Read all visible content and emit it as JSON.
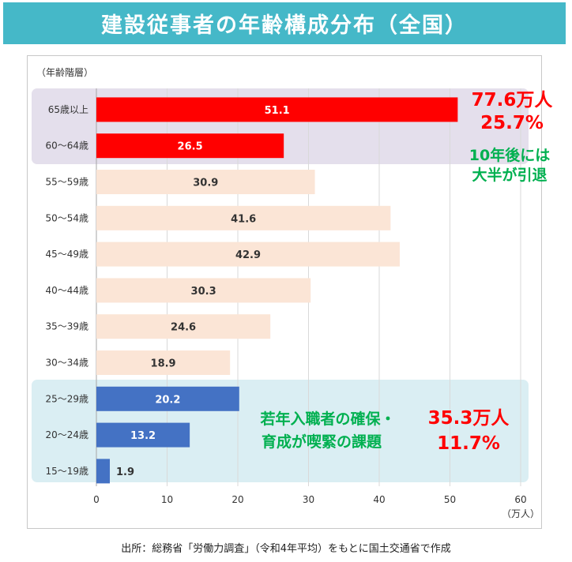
{
  "title": "建設従事者の年齢構成分布（全国）",
  "source": "出所：総務省「労働力調査」（令和4年平均）をもとに国土交通省で作成",
  "colors": {
    "title_bg": "#45b8c8",
    "bar_red": "#ff0000",
    "bar_peach": "#fbe5d6",
    "bar_blue": "#4472c4",
    "panel_purple": "#e4dfec",
    "panel_blue": "#daeef3",
    "callout_red": "#ff0000",
    "callout_green": "#00b050"
  },
  "chart_data": {
    "type": "bar",
    "orientation": "horizontal",
    "ylabel": "（年齢階層）",
    "xlabel": "（万人）",
    "xlim": [
      0,
      60
    ],
    "xticks": [
      0,
      10,
      20,
      30,
      40,
      50,
      60
    ],
    "categories": [
      "65歳以上",
      "60～64歳",
      "55～59歳",
      "50～54歳",
      "45～49歳",
      "40～44歳",
      "35～39歳",
      "30～34歳",
      "25～29歳",
      "20～24歳",
      "15～19歳"
    ],
    "values": [
      51.1,
      26.5,
      30.9,
      41.6,
      42.9,
      30.3,
      24.6,
      18.9,
      20.2,
      13.2,
      1.9
    ],
    "value_labels": [
      "51.1",
      "26.5",
      "30.9",
      "41.6",
      "42.9",
      "30.3",
      "24.6",
      "18.9",
      "20.2",
      "13.2",
      "1.9"
    ],
    "bar_groups": [
      "red",
      "red",
      "peach",
      "peach",
      "peach",
      "peach",
      "peach",
      "peach",
      "blue",
      "blue",
      "blue"
    ],
    "grid": true,
    "annotations": {
      "upper_total": "77.6万人",
      "upper_pct": "25.7%",
      "upper_note_line1": "10年後には",
      "upper_note_line2": "大半が引退",
      "lower_note_line1": "若年入職者の確保・",
      "lower_note_line2": "育成が喫緊の課題",
      "lower_total": "35.3万人",
      "lower_pct": "11.7%"
    }
  }
}
